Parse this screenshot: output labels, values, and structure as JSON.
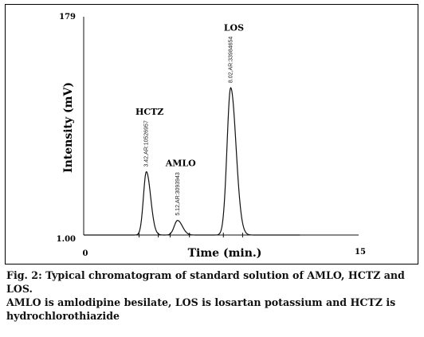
{
  "chart_data": {
    "type": "line",
    "xlabel": "Time (min.)",
    "ylabel": "Intensity (mV)",
    "xlim": [
      0,
      15
    ],
    "ylim": [
      1.0,
      179
    ],
    "x_tick_labels": [
      "0",
      "15"
    ],
    "y_tick_labels": [
      "1.00",
      "179"
    ],
    "peaks": [
      {
        "name": "HCTZ",
        "retention_time": 3.42,
        "area": 10526957,
        "peak_label": "3.42,AR:10526957",
        "height": 52,
        "width": 0.16
      },
      {
        "name": "AMLO",
        "retention_time": 5.12,
        "area": 3093943,
        "peak_label": "5.12,AR:3093943",
        "height": 12,
        "width": 0.18
      },
      {
        "name": "LOS",
        "retention_time": 8.02,
        "area": 33984654,
        "peak_label": "8.02,AR:33984654",
        "height": 121,
        "width": 0.2
      }
    ],
    "colors": {
      "line": "#111111",
      "axis": "#111111"
    }
  },
  "caption": {
    "line1": "Fig. 2: Typical chromatogram of standard solution of AMLO, HCTZ and LOS.",
    "line2": "AMLO is amlodipine besilate, LOS is losartan potassium and HCTZ is hydrochlorothiazide"
  }
}
